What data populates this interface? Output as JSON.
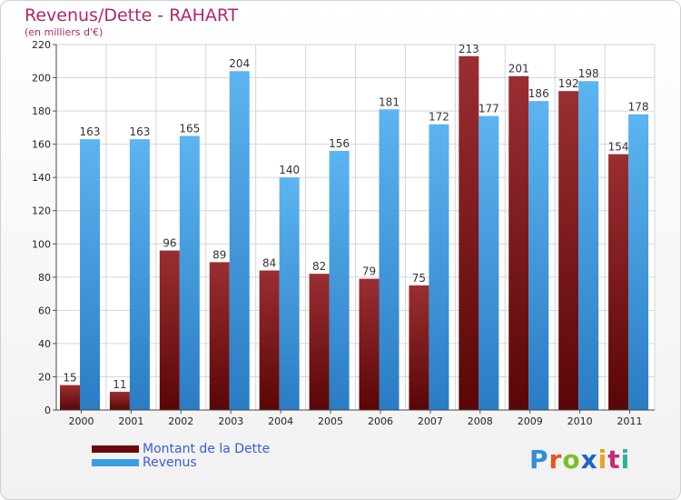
{
  "title": "Revenus/Dette - RAHART",
  "subtitle": "(en milliers d'€)",
  "logo": {
    "text": "Proxiti",
    "letter_colors": [
      "#2e8fd8",
      "#e8541e",
      "#7bbf26",
      "#1f63c8",
      "#e8a21e",
      "#c72a78",
      "#2eb0a0"
    ]
  },
  "legend": {
    "items": [
      {
        "label": "Montant de la Dette",
        "color": "#6b0a0a"
      },
      {
        "label": "Revenus",
        "color": "#3a9ee6"
      }
    ]
  },
  "chart_data": {
    "type": "bar",
    "categories": [
      "2000",
      "2001",
      "2002",
      "2003",
      "2004",
      "2005",
      "2006",
      "2007",
      "2008",
      "2009",
      "2010",
      "2011"
    ],
    "series": [
      {
        "name": "Montant de la Dette",
        "values": [
          15,
          11,
          96,
          89,
          84,
          82,
          79,
          75,
          213,
          201,
          192,
          154
        ],
        "color": "#8a1e22"
      },
      {
        "name": "Revenus",
        "values": [
          163,
          163,
          165,
          204,
          140,
          156,
          181,
          172,
          177,
          186,
          198,
          178
        ],
        "color": "#4aa8ec"
      }
    ],
    "y_ticks": [
      0,
      20,
      40,
      60,
      80,
      100,
      120,
      140,
      160,
      180,
      200,
      220
    ],
    "ylim": [
      0,
      220
    ],
    "grid": true
  }
}
